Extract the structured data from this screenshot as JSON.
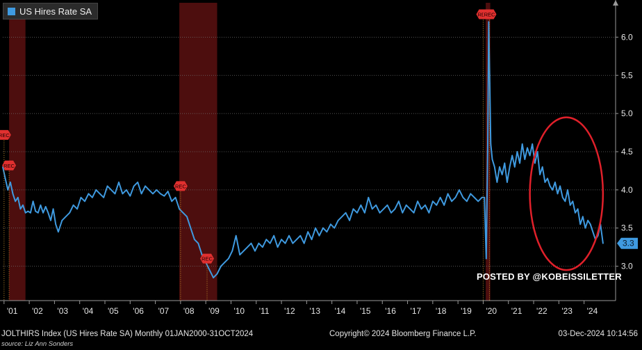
{
  "legend": {
    "label": "US Hires Rate SA",
    "color": "#3f9ae0"
  },
  "footer": {
    "index_text": "JOLTHIRS Index (US Hires Rate SA)  Monthly 01JAN2000-31OCT2024",
    "copyright": "Copyright© 2024 Bloomberg Finance L.P.",
    "timestamp": "03-Dec-2024 10:14:56",
    "source": "source: Liz Ann Sonders"
  },
  "watermark": "POSTED BY @KOBEISSILETTER",
  "chart_data": {
    "type": "line",
    "title": "",
    "xlabel": "",
    "ylabel": "",
    "x_range": [
      2000.95,
      2025.25
    ],
    "ylim": [
      2.55,
      6.45
    ],
    "y_ticks": [
      "3.0",
      "3.5",
      "4.0",
      "4.5",
      "5.0",
      "5.5",
      "6.0"
    ],
    "x_ticks": [
      {
        "label": "'01",
        "x": 2001
      },
      {
        "label": "'02",
        "x": 2002
      },
      {
        "label": "'03",
        "x": 2003
      },
      {
        "label": "'04",
        "x": 2004
      },
      {
        "label": "'05",
        "x": 2005
      },
      {
        "label": "'06",
        "x": 2006
      },
      {
        "label": "'07",
        "x": 2007
      },
      {
        "label": "'08",
        "x": 2008
      },
      {
        "label": "'09",
        "x": 2009
      },
      {
        "label": "'10",
        "x": 2010
      },
      {
        "label": "'11",
        "x": 2011
      },
      {
        "label": "'12",
        "x": 2012
      },
      {
        "label": "'13",
        "x": 2013
      },
      {
        "label": "'14",
        "x": 2014
      },
      {
        "label": "'15",
        "x": 2015
      },
      {
        "label": "'16",
        "x": 2016
      },
      {
        "label": "'17",
        "x": 2017
      },
      {
        "label": "'18",
        "x": 2018
      },
      {
        "label": "'19",
        "x": 2019
      },
      {
        "label": "'20",
        "x": 2020
      },
      {
        "label": "'21",
        "x": 2021
      },
      {
        "label": "'22",
        "x": 2022
      },
      {
        "label": "'23",
        "x": 2023
      },
      {
        "label": "'24",
        "x": 2024
      }
    ],
    "grid": true,
    "last_value_label": "3.3",
    "recessions": [
      {
        "start": 2001.2,
        "end": 2001.85
      },
      {
        "start": 2007.95,
        "end": 2009.45
      },
      {
        "start": 2020.1,
        "end": 2020.28
      }
    ],
    "rec_markers": [
      {
        "label": "REC",
        "x": 2001.0,
        "y": 4.72
      },
      {
        "label": "REC",
        "x": 2001.2,
        "y": 4.32
      },
      {
        "label": "REC",
        "x": 2008.0,
        "y": 4.05
      },
      {
        "label": "REC",
        "x": 2009.05,
        "y": 3.1
      },
      {
        "label": "REC",
        "x": 2020.0,
        "y": 6.3
      },
      {
        "label": "REC",
        "x": 2020.25,
        "y": 6.3
      }
    ],
    "highlight_ellipse": {
      "cx": 2023.3,
      "cy": 3.95,
      "rx": 1.45,
      "ry": 1.0,
      "color": "#e0202a"
    },
    "series": [
      {
        "name": "US Hires Rate SA",
        "color": "#3f9ae0",
        "x": [
          2000.95,
          2001.05,
          2001.15,
          2001.25,
          2001.35,
          2001.45,
          2001.55,
          2001.65,
          2001.75,
          2001.85,
          2001.95,
          2002.05,
          2002.15,
          2002.25,
          2002.35,
          2002.45,
          2002.55,
          2002.65,
          2002.75,
          2002.85,
          2002.95,
          2003.05,
          2003.15,
          2003.3,
          2003.45,
          2003.6,
          2003.75,
          2003.9,
          2004.05,
          2004.2,
          2004.35,
          2004.5,
          2004.65,
          2004.8,
          2004.95,
          2005.1,
          2005.25,
          2005.4,
          2005.55,
          2005.7,
          2005.85,
          2006.0,
          2006.15,
          2006.3,
          2006.45,
          2006.6,
          2006.75,
          2006.9,
          2007.05,
          2007.2,
          2007.35,
          2007.5,
          2007.65,
          2007.8,
          2007.95,
          2008.1,
          2008.25,
          2008.4,
          2008.55,
          2008.7,
          2008.85,
          2009.0,
          2009.15,
          2009.3,
          2009.45,
          2009.6,
          2009.75,
          2009.9,
          2010.05,
          2010.2,
          2010.35,
          2010.5,
          2010.65,
          2010.8,
          2010.95,
          2011.1,
          2011.25,
          2011.4,
          2011.55,
          2011.7,
          2011.85,
          2012.0,
          2012.15,
          2012.3,
          2012.45,
          2012.6,
          2012.75,
          2012.9,
          2013.05,
          2013.2,
          2013.35,
          2013.5,
          2013.65,
          2013.8,
          2013.95,
          2014.1,
          2014.25,
          2014.4,
          2014.55,
          2014.7,
          2014.85,
          2015.0,
          2015.15,
          2015.3,
          2015.45,
          2015.6,
          2015.75,
          2015.9,
          2016.05,
          2016.2,
          2016.35,
          2016.5,
          2016.65,
          2016.8,
          2016.95,
          2017.1,
          2017.25,
          2017.4,
          2017.55,
          2017.7,
          2017.85,
          2018.0,
          2018.15,
          2018.3,
          2018.45,
          2018.6,
          2018.75,
          2018.9,
          2019.05,
          2019.2,
          2019.35,
          2019.5,
          2019.65,
          2019.8,
          2019.95,
          2020.05,
          2020.12,
          2020.18,
          2020.22,
          2020.26,
          2020.3,
          2020.36,
          2020.45,
          2020.55,
          2020.65,
          2020.75,
          2020.85,
          2020.95,
          2021.05,
          2021.15,
          2021.25,
          2021.35,
          2021.45,
          2021.55,
          2021.65,
          2021.75,
          2021.85,
          2021.95,
          2022.05,
          2022.15,
          2022.25,
          2022.35,
          2022.45,
          2022.55,
          2022.65,
          2022.75,
          2022.85,
          2022.95,
          2023.05,
          2023.15,
          2023.25,
          2023.35,
          2023.45,
          2023.55,
          2023.65,
          2023.75,
          2023.85,
          2023.95,
          2024.05,
          2024.15,
          2024.25,
          2024.35,
          2024.45,
          2024.55,
          2024.65,
          2024.75
        ],
        "values": [
          4.3,
          4.15,
          4.0,
          4.1,
          3.95,
          3.85,
          3.9,
          3.75,
          3.8,
          3.7,
          3.72,
          3.7,
          3.85,
          3.72,
          3.7,
          3.8,
          3.7,
          3.78,
          3.7,
          3.6,
          3.75,
          3.55,
          3.45,
          3.6,
          3.65,
          3.7,
          3.8,
          3.75,
          3.9,
          3.85,
          3.95,
          3.9,
          4.0,
          3.95,
          3.9,
          4.05,
          4.0,
          3.95,
          4.1,
          3.95,
          4.0,
          3.92,
          4.05,
          4.1,
          3.95,
          4.05,
          4.0,
          3.95,
          4.0,
          3.95,
          3.92,
          3.98,
          3.85,
          3.9,
          3.75,
          3.7,
          3.65,
          3.5,
          3.35,
          3.3,
          3.15,
          3.05,
          2.95,
          2.85,
          2.9,
          3.0,
          3.05,
          3.1,
          3.2,
          3.4,
          3.15,
          3.2,
          3.25,
          3.3,
          3.2,
          3.3,
          3.25,
          3.35,
          3.3,
          3.4,
          3.25,
          3.35,
          3.3,
          3.4,
          3.3,
          3.35,
          3.4,
          3.3,
          3.45,
          3.35,
          3.5,
          3.4,
          3.5,
          3.45,
          3.55,
          3.5,
          3.6,
          3.65,
          3.7,
          3.6,
          3.75,
          3.7,
          3.8,
          3.7,
          3.9,
          3.75,
          3.8,
          3.7,
          3.75,
          3.8,
          3.7,
          3.75,
          3.85,
          3.7,
          3.8,
          3.75,
          3.7,
          3.85,
          3.75,
          3.8,
          3.7,
          3.85,
          3.8,
          3.9,
          3.8,
          3.95,
          3.85,
          3.9,
          4.0,
          3.9,
          3.85,
          3.95,
          3.9,
          3.85,
          3.9,
          3.9,
          3.1,
          4.6,
          6.2,
          5.4,
          4.6,
          4.4,
          4.3,
          4.1,
          4.3,
          4.2,
          4.35,
          4.1,
          4.3,
          4.45,
          4.3,
          4.5,
          4.35,
          4.6,
          4.4,
          4.55,
          4.45,
          4.6,
          4.35,
          4.5,
          4.2,
          4.3,
          4.1,
          4.15,
          4.05,
          4.0,
          4.1,
          3.95,
          4.05,
          3.9,
          3.85,
          4.0,
          3.8,
          3.85,
          3.7,
          3.75,
          3.55,
          3.65,
          3.5,
          3.6,
          3.55,
          3.45,
          3.35,
          3.4,
          3.55,
          3.3
        ]
      }
    ]
  }
}
